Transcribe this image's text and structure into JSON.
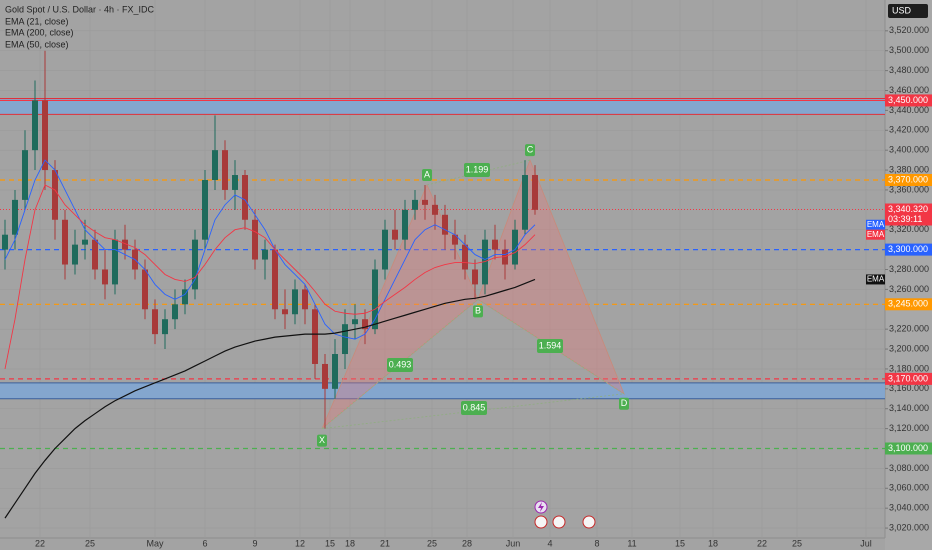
{
  "chart_data": {
    "type": "candlestick",
    "title": "Gold Spot / U.S. Dollar · 4h · FX_IDC",
    "currency": "USD",
    "up_color": "#1f6b5c",
    "down_color": "#a83a3a",
    "x_labels": [
      "22",
      "25",
      "May",
      "6",
      "9",
      "12",
      "15",
      "18",
      "21",
      "25",
      "28",
      "Jun",
      "4",
      "8",
      "11",
      "15",
      "18",
      "22",
      "25",
      "Jul"
    ],
    "open": [
      3300,
      3315,
      3350,
      3400,
      3450,
      3380,
      3330,
      3285,
      3305,
      3310,
      3280,
      3265,
      3310,
      3300,
      3280,
      3240,
      3215,
      3230,
      3245,
      3260,
      3310,
      3370,
      3400,
      3360,
      3375,
      3330,
      3290,
      3300,
      3240,
      3235,
      3260,
      3240,
      3185,
      3160,
      3195,
      3225,
      3230,
      3220,
      3280,
      3320,
      3310,
      3340,
      3350,
      3345,
      3335,
      3315,
      3305,
      3280,
      3265,
      3310,
      3300,
      3285,
      3320,
      3375
    ],
    "high": [
      3330,
      3360,
      3420,
      3470,
      3500,
      3390,
      3340,
      3320,
      3330,
      3320,
      3300,
      3320,
      3325,
      3310,
      3290,
      3250,
      3240,
      3260,
      3270,
      3320,
      3380,
      3435,
      3410,
      3390,
      3380,
      3340,
      3310,
      3305,
      3260,
      3270,
      3265,
      3245,
      3195,
      3210,
      3240,
      3245,
      3240,
      3290,
      3330,
      3340,
      3350,
      3360,
      3365,
      3355,
      3345,
      3330,
      3315,
      3290,
      3320,
      3325,
      3310,
      3330,
      3390,
      3385
    ],
    "low": [
      3280,
      3300,
      3340,
      3380,
      3360,
      3310,
      3270,
      3275,
      3290,
      3270,
      3250,
      3255,
      3290,
      3270,
      3230,
      3205,
      3200,
      3220,
      3235,
      3250,
      3300,
      3360,
      3350,
      3340,
      3320,
      3280,
      3270,
      3230,
      3220,
      3225,
      3225,
      3170,
      3120,
      3150,
      3180,
      3210,
      3205,
      3215,
      3270,
      3300,
      3300,
      3330,
      3330,
      3320,
      3300,
      3290,
      3270,
      3250,
      3255,
      3290,
      3270,
      3280,
      3315,
      3335
    ],
    "close": [
      3315,
      3350,
      3400,
      3450,
      3380,
      3330,
      3285,
      3305,
      3310,
      3280,
      3265,
      3310,
      3300,
      3280,
      3240,
      3215,
      3230,
      3245,
      3260,
      3310,
      3370,
      3400,
      3360,
      3375,
      3330,
      3290,
      3300,
      3240,
      3235,
      3260,
      3240,
      3185,
      3160,
      3195,
      3225,
      3230,
      3220,
      3280,
      3320,
      3310,
      3340,
      3350,
      3345,
      3335,
      3315,
      3305,
      3280,
      3265,
      3310,
      3300,
      3285,
      3320,
      3375,
      3340
    ],
    "series": [
      {
        "name": "EMA (21, close)",
        "color": "#2962ff",
        "axis_label": "EMA",
        "values": [
          3290,
          3310,
          3340,
          3370,
          3390,
          3380,
          3360,
          3340,
          3320,
          3310,
          3300,
          3300,
          3295,
          3290,
          3280,
          3265,
          3255,
          3250,
          3255,
          3270,
          3300,
          3330,
          3345,
          3355,
          3350,
          3335,
          3320,
          3300,
          3285,
          3275,
          3265,
          3245,
          3225,
          3215,
          3212,
          3210,
          3215,
          3230,
          3250,
          3270,
          3290,
          3310,
          3320,
          3325,
          3320,
          3315,
          3305,
          3295,
          3290,
          3295,
          3295,
          3300,
          3315,
          3325
        ]
      },
      {
        "name": "EMA (200, close)",
        "color": "#111111",
        "axis_label": "EMA",
        "values": [
          3030,
          3045,
          3060,
          3075,
          3088,
          3100,
          3110,
          3120,
          3128,
          3135,
          3142,
          3148,
          3153,
          3158,
          3162,
          3166,
          3170,
          3174,
          3178,
          3183,
          3188,
          3193,
          3198,
          3202,
          3205,
          3208,
          3210,
          3212,
          3213,
          3214,
          3215,
          3215,
          3215,
          3216,
          3218,
          3220,
          3222,
          3225,
          3228,
          3231,
          3234,
          3237,
          3240,
          3243,
          3246,
          3248,
          3250,
          3251,
          3253,
          3256,
          3259,
          3262,
          3266,
          3270
        ]
      },
      {
        "name": "EMA (50, close)",
        "color": "#f23645",
        "axis_label": "EMA",
        "values": [
          3180,
          3230,
          3290,
          3340,
          3365,
          3360,
          3345,
          3335,
          3325,
          3318,
          3312,
          3310,
          3306,
          3302,
          3295,
          3285,
          3275,
          3270,
          3268,
          3272,
          3285,
          3300,
          3312,
          3320,
          3322,
          3318,
          3312,
          3300,
          3290,
          3280,
          3270,
          3258,
          3245,
          3238,
          3236,
          3235,
          3236,
          3240,
          3248,
          3255,
          3262,
          3270,
          3277,
          3282,
          3285,
          3287,
          3287,
          3286,
          3288,
          3292,
          3293,
          3297,
          3305,
          3315
        ]
      }
    ],
    "ylim": [
      3010,
      3551
    ],
    "yticks": [
      {
        "value": 3520,
        "label": "3,520.000"
      },
      {
        "value": 3500,
        "label": "3,500.000"
      },
      {
        "value": 3480,
        "label": "3,480.000"
      },
      {
        "value": 3460,
        "label": "3,460.000"
      },
      {
        "value": 3440,
        "label": "3,440.000"
      },
      {
        "value": 3420,
        "label": "3,420.000"
      },
      {
        "value": 3400,
        "label": "3,400.000"
      },
      {
        "value": 3380,
        "label": "3,380.000"
      },
      {
        "value": 3360,
        "label": "3,360.000"
      },
      {
        "value": 3320,
        "label": "3,320.000"
      },
      {
        "value": 3280,
        "label": "3,280.000"
      },
      {
        "value": 3260,
        "label": "3,260.000"
      },
      {
        "value": 3220,
        "label": "3,220.000"
      },
      {
        "value": 3200,
        "label": "3,200.000"
      },
      {
        "value": 3180,
        "label": "3,180.000"
      },
      {
        "value": 3160,
        "label": "3,160.000"
      },
      {
        "value": 3140,
        "label": "3,140.000"
      },
      {
        "value": 3120,
        "label": "3,120.000"
      },
      {
        "value": 3080,
        "label": "3,080.000"
      },
      {
        "value": 3060,
        "label": "3,060.000"
      },
      {
        "value": 3040,
        "label": "3,040.000"
      },
      {
        "value": 3020,
        "label": "3,020.000"
      }
    ],
    "zones": [
      {
        "low": 3436,
        "high": 3452,
        "color": "#7fa7d6",
        "border": "#e0303a"
      },
      {
        "low": 3150,
        "high": 3166,
        "color": "#7fa7d6",
        "border": "#3b5f9a"
      }
    ],
    "levels": [
      {
        "value": 3450,
        "label": "3,450.000",
        "color": "#f23645",
        "style": "solid"
      },
      {
        "value": 3370,
        "label": "3,370.000",
        "color": "#ff9800",
        "style": "dashed"
      },
      {
        "value": 3300,
        "label": "3,300.000",
        "color": "#2962ff",
        "style": "dashed"
      },
      {
        "value": 3245,
        "label": "3,245.000",
        "color": "#ff9800",
        "style": "dashed"
      },
      {
        "value": 3170,
        "label": "3,170.000",
        "color": "#f23645",
        "style": "dashed"
      },
      {
        "value": 3100,
        "label": "3,100.000",
        "color": "#4caf50",
        "style": "dashed"
      }
    ],
    "last_price": {
      "value": 3340.32,
      "label": "3,340.320",
      "countdown": "03:39:11",
      "color": "#f23645"
    },
    "pattern": {
      "points": [
        {
          "label": "X",
          "value": 3120
        },
        {
          "label": "A",
          "value": 3365
        },
        {
          "label": "B",
          "value": 3250
        },
        {
          "label": "C",
          "value": 3390
        },
        {
          "label": "D",
          "value": 3155
        }
      ],
      "ratios": [
        0.493,
        1.199,
        1.594,
        0.845
      ]
    }
  }
}
